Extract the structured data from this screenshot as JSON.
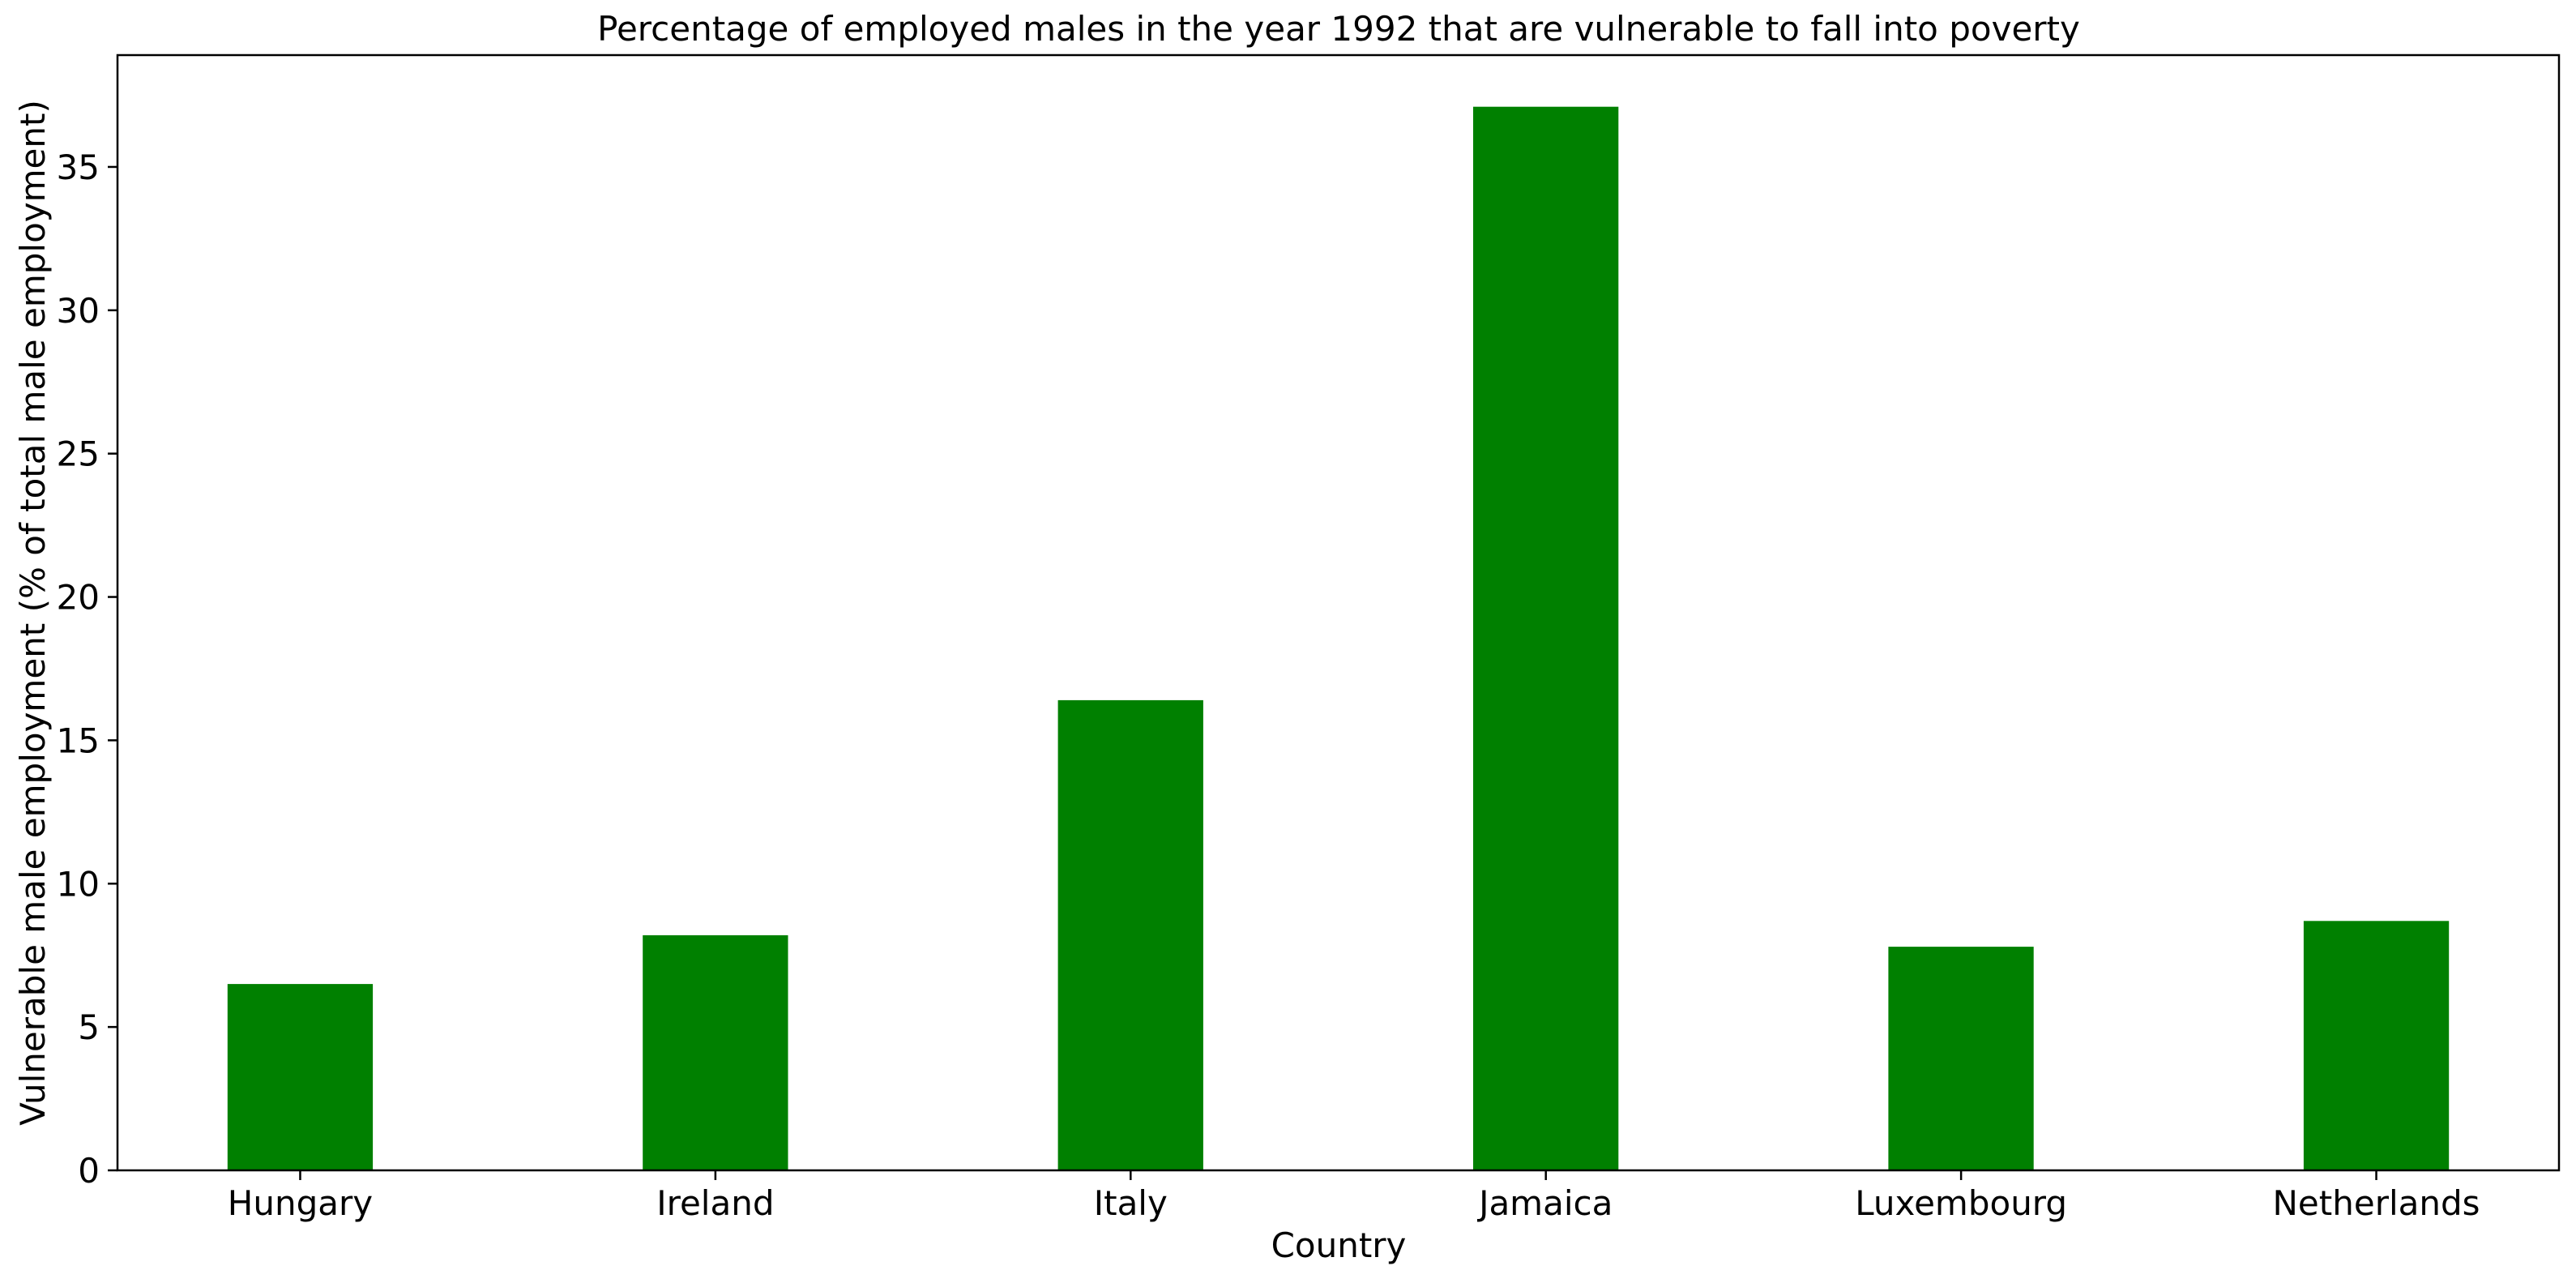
{
  "chart_data": {
    "type": "bar",
    "title": "Percentage of employed males in the year 1992 that are vulnerable to fall into poverty",
    "xlabel": "Country",
    "ylabel": "Vulnerable male employment (% of total male employment)",
    "categories": [
      "Hungary",
      "Ireland",
      "Italy",
      "Jamaica",
      "Luxembourg",
      "Netherlands"
    ],
    "values": [
      6.5,
      8.2,
      16.4,
      37.1,
      7.8,
      8.7
    ],
    "ylim": [
      0,
      38.9
    ],
    "yticks": [
      0,
      5,
      10,
      15,
      20,
      25,
      30,
      35
    ],
    "bar_color": "#008000",
    "grid": false,
    "legend": "none"
  }
}
